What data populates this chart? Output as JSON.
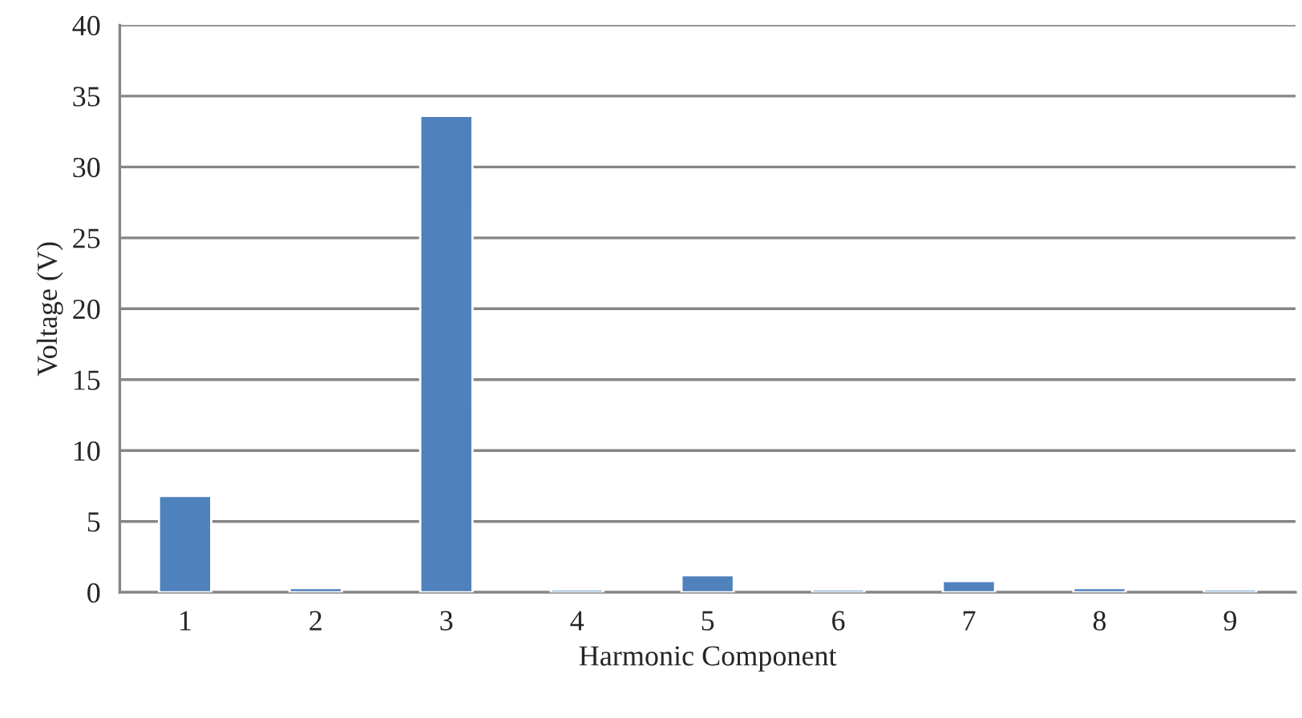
{
  "chart_data": {
    "type": "bar",
    "xlabel": "Harmonic Component",
    "ylabel": "Voltage (V)",
    "categories": [
      "1",
      "2",
      "3",
      "4",
      "5",
      "6",
      "7",
      "8",
      "9"
    ],
    "values": [
      6.8,
      0.3,
      33.6,
      0.2,
      1.2,
      0.2,
      0.8,
      0.3,
      0.2
    ],
    "color": "#4f81bd",
    "ylim": [
      0,
      40
    ],
    "yticks": [
      0,
      5,
      10,
      15,
      20,
      25,
      30,
      35,
      40
    ],
    "grid": "y",
    "legend": false
  }
}
